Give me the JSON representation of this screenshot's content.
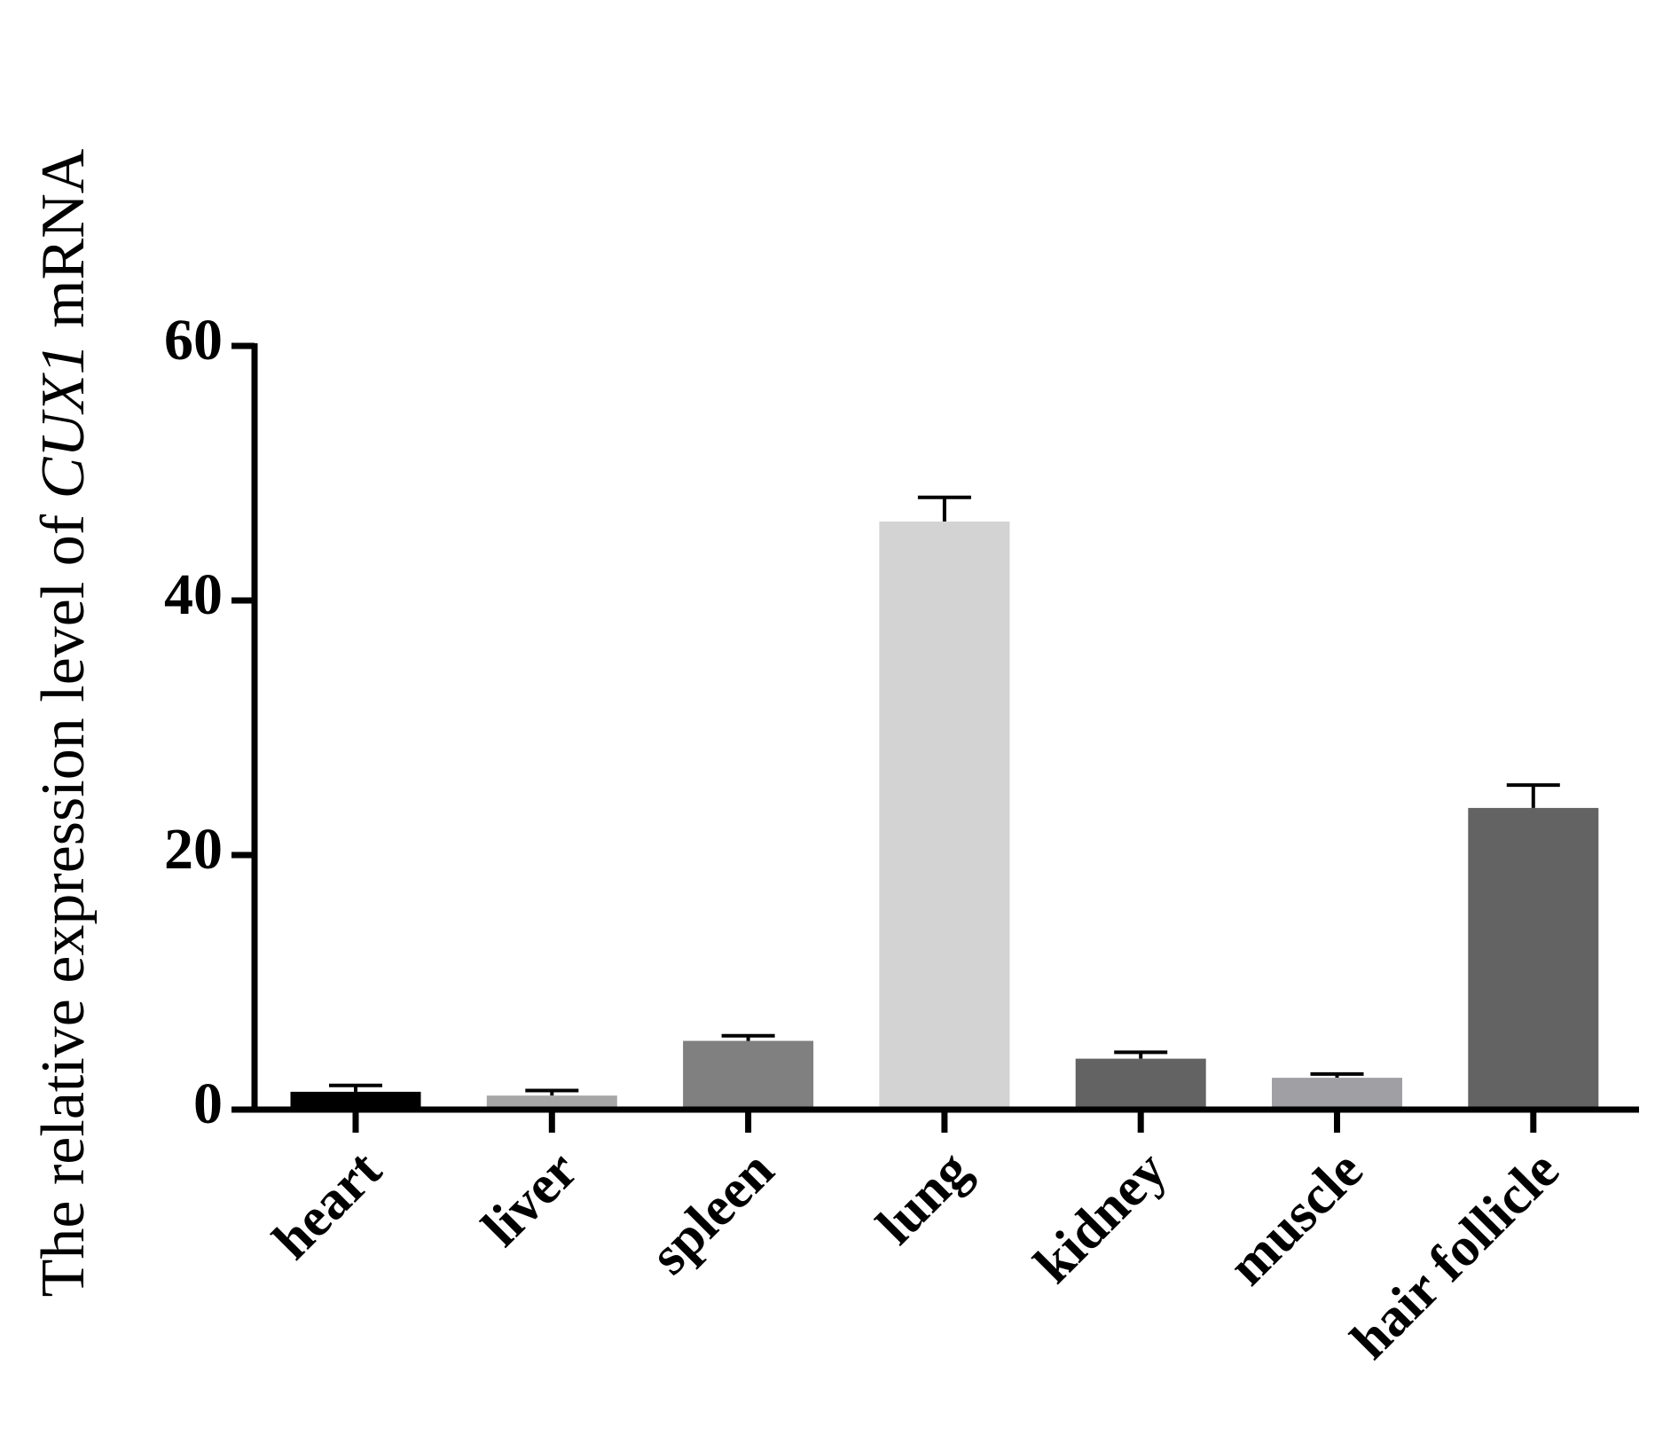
{
  "chart_data": {
    "type": "bar",
    "y_label": [
      "The relative expression level of ",
      "CUX1",
      " mRNA"
    ],
    "categories": [
      "heart",
      "liver",
      "spleen",
      "lung",
      "kidney",
      "muscle",
      "hair follicle"
    ],
    "values": [
      1.4,
      1.1,
      5.4,
      46.2,
      4.0,
      2.5,
      23.7
    ],
    "errors": [
      0.5,
      0.4,
      0.4,
      1.9,
      0.5,
      0.3,
      1.8
    ],
    "colors": [
      "#000000",
      "#a6a6a6",
      "#808080",
      "#d3d3d3",
      "#636363",
      "#a0a0a4",
      "#636363"
    ],
    "ylim": [
      0,
      60
    ],
    "yticks": [
      0,
      20,
      40,
      60
    ]
  }
}
